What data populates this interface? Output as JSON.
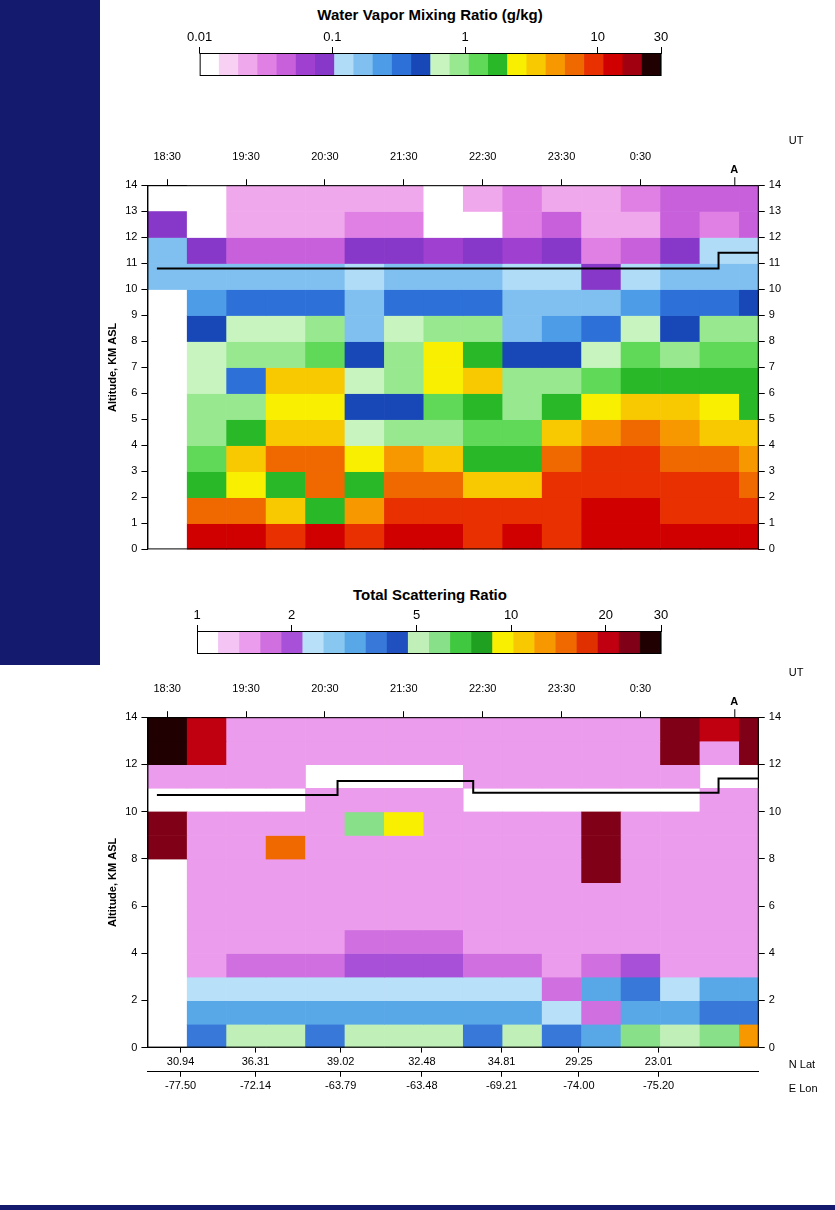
{
  "chart_data": [
    {
      "type": "heatmap",
      "title": "Water Vapor Mixing Ratio (g/kg)",
      "x_label": "UT",
      "y_label": "Altitude, KM ASL",
      "xlim": [
        18.25,
        26.0
      ],
      "xticks": [
        {
          "value": 18.5,
          "label": "18:30"
        },
        {
          "value": 19.5,
          "label": "19:30"
        },
        {
          "value": 20.5,
          "label": "20:30"
        },
        {
          "value": 21.5,
          "label": "21:30"
        },
        {
          "value": 22.5,
          "label": "22:30"
        },
        {
          "value": 23.5,
          "label": "23:30"
        },
        {
          "value": 24.5,
          "label": "0:30"
        }
      ],
      "ylim": [
        0,
        14
      ],
      "yticks": [
        0,
        1,
        2,
        3,
        4,
        5,
        6,
        7,
        8,
        9,
        10,
        11,
        12,
        13,
        14
      ],
      "grid": false,
      "colorbar": {
        "log": true,
        "range": [
          0.01,
          30
        ],
        "ticks": [
          0.01,
          0.1,
          1,
          10,
          30
        ],
        "colors": [
          "#ffffff",
          "#f8d0f4",
          "#f0a8ec",
          "#e080e4",
          "#c860dc",
          "#a040d0",
          "#8838c8",
          "#b0dcf8",
          "#80c0f0",
          "#4c9ce8",
          "#2c70d8",
          "#1848b8",
          "#c8f4c0",
          "#98e890",
          "#60d858",
          "#28b828",
          "#f8f000",
          "#f8c800",
          "#f89800",
          "#f06800",
          "#e83000",
          "#d00000",
          "#a00010",
          "#200000"
        ]
      },
      "time_edges": [
        18.25,
        18.75,
        19.25,
        19.75,
        20.25,
        20.75,
        21.25,
        21.75,
        22.25,
        22.75,
        23.25,
        23.75,
        24.25,
        24.75,
        25.25,
        25.75,
        26.0
      ],
      "altitude_edges": [
        0,
        1,
        2,
        3,
        4,
        5,
        6,
        7,
        8,
        9,
        10,
        11,
        12,
        13,
        14
      ],
      "cells": [
        [
          null,
          12,
          12,
          11,
          12,
          11,
          14,
          14,
          9,
          13,
          10,
          14,
          14,
          13,
          13,
          12
        ],
        [
          null,
          6,
          7,
          4,
          1.8,
          5,
          10,
          10,
          8,
          9,
          10,
          12,
          12,
          11,
          10,
          9
        ],
        [
          null,
          1.5,
          2.5,
          2,
          6,
          1.5,
          7,
          6,
          3,
          4,
          9,
          10,
          10,
          8,
          8,
          7
        ],
        [
          null,
          1.2,
          3.5,
          7,
          6,
          2.5,
          5,
          4,
          1.5,
          1.8,
          6,
          8,
          8,
          6,
          6,
          5
        ],
        [
          null,
          1.0,
          1.5,
          4,
          3,
          0.7,
          1.0,
          0.8,
          1.2,
          1.2,
          3,
          5,
          6,
          5,
          4,
          3
        ],
        [
          null,
          0.8,
          0.9,
          2.5,
          2.5,
          0.5,
          0.4,
          1.2,
          1.5,
          1.0,
          1.5,
          2.5,
          3.5,
          3,
          2.5,
          2
        ],
        [
          null,
          0.7,
          0.3,
          3,
          3,
          0.6,
          0.8,
          2.5,
          3.5,
          0.9,
          0.8,
          1.2,
          2,
          1.5,
          1.5,
          1.5
        ],
        [
          null,
          0.6,
          0.8,
          1.0,
          1.2,
          0.4,
          1.0,
          2.8,
          1.5,
          0.5,
          0.4,
          0.6,
          1.2,
          1.0,
          1.2,
          1.2
        ],
        [
          null,
          0.4,
          0.6,
          0.7,
          0.8,
          0.2,
          0.7,
          0.9,
          0.8,
          0.2,
          0.25,
          0.3,
          0.6,
          0.5,
          0.8,
          0.9
        ],
        [
          null,
          0.25,
          0.3,
          0.3,
          0.3,
          0.15,
          0.3,
          0.3,
          0.35,
          0.15,
          0.15,
          0.15,
          0.25,
          0.3,
          0.35,
          0.4
        ],
        [
          0.2,
          0.15,
          0.15,
          0.15,
          0.15,
          0.12,
          0.15,
          0.15,
          0.15,
          0.12,
          0.12,
          0.1,
          0.12,
          0.15,
          0.15,
          0.2
        ],
        [
          0.15,
          0.1,
          0.05,
          0.05,
          0.04,
          0.08,
          0.08,
          0.06,
          0.08,
          0.06,
          0.08,
          0.03,
          0.04,
          0.08,
          0.12,
          0.12
        ],
        [
          0.1,
          0.012,
          0.02,
          0.02,
          0.02,
          0.03,
          0.03,
          0.01,
          0.01,
          0.03,
          0.04,
          0.02,
          0.02,
          0.04,
          0.03,
          0.05
        ],
        [
          null,
          0.011,
          0.02,
          0.02,
          0.02,
          0.02,
          0.02,
          0.01,
          0.02,
          0.03,
          0.02,
          0.02,
          0.03,
          0.04,
          0.05,
          0.05
        ]
      ],
      "series": [
        {
          "type": "line",
          "color": "#000000",
          "line_style": "solid",
          "x": [
            18.37,
            25.49,
            25.49,
            26.0
          ],
          "values": [
            10.8,
            10.8,
            11.4,
            11.4
          ]
        }
      ],
      "annotations": [
        {
          "text": "A",
          "x": 25.69
        }
      ]
    },
    {
      "type": "heatmap",
      "title": "Total Scattering Ratio",
      "x_label": "UT",
      "y_label": "Altitude, KM ASL",
      "xlim": [
        18.25,
        26.0
      ],
      "xticks": [
        {
          "value": 18.5,
          "label": "18:30"
        },
        {
          "value": 19.5,
          "label": "19:30"
        },
        {
          "value": 20.5,
          "label": "20:30"
        },
        {
          "value": 21.5,
          "label": "21:30"
        },
        {
          "value": 22.5,
          "label": "22:30"
        },
        {
          "value": 23.5,
          "label": "23:30"
        },
        {
          "value": 24.5,
          "label": "0:30"
        }
      ],
      "x2_label": "N Lat",
      "x2ticks": [
        {
          "value": 18.67,
          "label": "30.94"
        },
        {
          "value": 19.62,
          "label": "36.31"
        },
        {
          "value": 20.7,
          "label": "39.02"
        },
        {
          "value": 21.73,
          "label": "32.48"
        },
        {
          "value": 22.74,
          "label": "34.81"
        },
        {
          "value": 23.72,
          "label": "29.25"
        },
        {
          "value": 24.73,
          "label": "23.01"
        }
      ],
      "x3_label": "E Lon",
      "x3ticks": [
        {
          "value": 18.67,
          "label": "-77.50"
        },
        {
          "value": 19.62,
          "label": "-72.14"
        },
        {
          "value": 20.7,
          "label": "-63.79"
        },
        {
          "value": 21.73,
          "label": "-63.48"
        },
        {
          "value": 22.74,
          "label": "-69.21"
        },
        {
          "value": 23.72,
          "label": "-74.00"
        },
        {
          "value": 24.73,
          "label": "-75.20"
        }
      ],
      "ylim": [
        0,
        14
      ],
      "yticks": [
        0,
        2,
        4,
        6,
        8,
        10,
        12,
        14
      ],
      "grid": false,
      "colorbar": {
        "log": true,
        "range": [
          1,
          30
        ],
        "ticks": [
          1,
          2,
          5,
          10,
          20,
          30
        ],
        "colors": [
          "#ffffff",
          "#f4c4f4",
          "#ec9cec",
          "#d070e0",
          "#a850d8",
          "#b8e0f8",
          "#88c8f0",
          "#58a8e8",
          "#3878d8",
          "#2050c0",
          "#c0f0b8",
          "#88e088",
          "#40c840",
          "#20a020",
          "#f8f000",
          "#f8c800",
          "#f89800",
          "#f06800",
          "#e03000",
          "#c00010",
          "#800018",
          "#200000"
        ]
      },
      "time_edges": [
        18.25,
        18.75,
        19.25,
        19.75,
        20.25,
        20.75,
        21.25,
        21.75,
        22.25,
        22.75,
        23.25,
        23.75,
        24.25,
        24.75,
        25.25,
        25.75,
        26.0
      ],
      "altitude_edges": [
        0,
        1,
        2,
        3,
        4,
        5,
        6,
        7,
        8,
        9,
        10,
        11,
        12,
        13,
        14
      ],
      "cells": [
        [
          null,
          4,
          5,
          5,
          4,
          5,
          5,
          5,
          4,
          5,
          4,
          3,
          6,
          5,
          6,
          12
        ],
        [
          null,
          3,
          3,
          3,
          3,
          3,
          3,
          3,
          3,
          3,
          2.5,
          1.8,
          3,
          3,
          4,
          4
        ],
        [
          null,
          2.2,
          2.5,
          2.2,
          2.5,
          2.5,
          2.5,
          2.5,
          2.2,
          2.5,
          1.6,
          3,
          4,
          2.5,
          3,
          3
        ],
        [
          null,
          1.4,
          1.6,
          1.6,
          1.8,
          2.0,
          2.0,
          2.0,
          1.8,
          1.6,
          1.4,
          1.6,
          2,
          1.4,
          1.4,
          1.4
        ],
        [
          null,
          1.4,
          1.4,
          1.4,
          1.4,
          1.6,
          1.8,
          1.6,
          1.4,
          1.4,
          1.4,
          1.4,
          1.4,
          1.4,
          1.4,
          1.4
        ],
        [
          null,
          1.4,
          1.4,
          1.4,
          1.4,
          1.4,
          1.4,
          1.4,
          1.4,
          1.4,
          1.4,
          1.4,
          1.4,
          1.4,
          1.4,
          1.4
        ],
        [
          null,
          1.4,
          1.4,
          1.4,
          1.4,
          1.4,
          1.4,
          1.4,
          1.4,
          1.4,
          1.4,
          1.4,
          1.4,
          1.4,
          1.4,
          1.4
        ],
        [
          null,
          1.4,
          1.4,
          1.4,
          1.4,
          1.4,
          1.4,
          1.4,
          1.4,
          1.4,
          1.4,
          25,
          1.4,
          1.4,
          1.4,
          1.4
        ],
        [
          25,
          1.4,
          1.4,
          15,
          1.4,
          1.4,
          1.4,
          1.4,
          1.4,
          1.4,
          1.4,
          25,
          1.4,
          1.4,
          1.4,
          1.4
        ],
        [
          25,
          1.4,
          1.4,
          1.4,
          1.4,
          6,
          10,
          1.4,
          1.4,
          1.4,
          1.4,
          25,
          1.4,
          1.4,
          1.4,
          1.4
        ],
        [
          null,
          null,
          null,
          null,
          1.4,
          1.4,
          1.4,
          1.4,
          null,
          null,
          null,
          null,
          null,
          null,
          1.4,
          1.4
        ],
        [
          1.4,
          1.4,
          1.4,
          1.4,
          null,
          null,
          null,
          null,
          1.4,
          1.4,
          1.4,
          1.4,
          1.4,
          1.4,
          null,
          null
        ],
        [
          28,
          20,
          1.4,
          1.4,
          1.4,
          1.4,
          1.4,
          1.4,
          1.4,
          1.4,
          1.4,
          1.4,
          1.4,
          25,
          1.4,
          25
        ],
        [
          28,
          20,
          1.4,
          1.4,
          1.4,
          1.4,
          1.4,
          1.4,
          1.4,
          1.4,
          1.4,
          1.4,
          1.4,
          25,
          20,
          25
        ]
      ],
      "series": [
        {
          "type": "line",
          "color": "#000000",
          "line_style": "solid",
          "x": [
            18.37,
            20.66,
            20.66,
            22.38,
            22.38,
            25.49,
            25.49,
            26.0
          ],
          "values": [
            10.7,
            10.7,
            11.3,
            11.3,
            10.8,
            10.8,
            11.4,
            11.4
          ]
        }
      ],
      "annotations": [
        {
          "text": "A",
          "x": 25.69
        }
      ]
    }
  ]
}
